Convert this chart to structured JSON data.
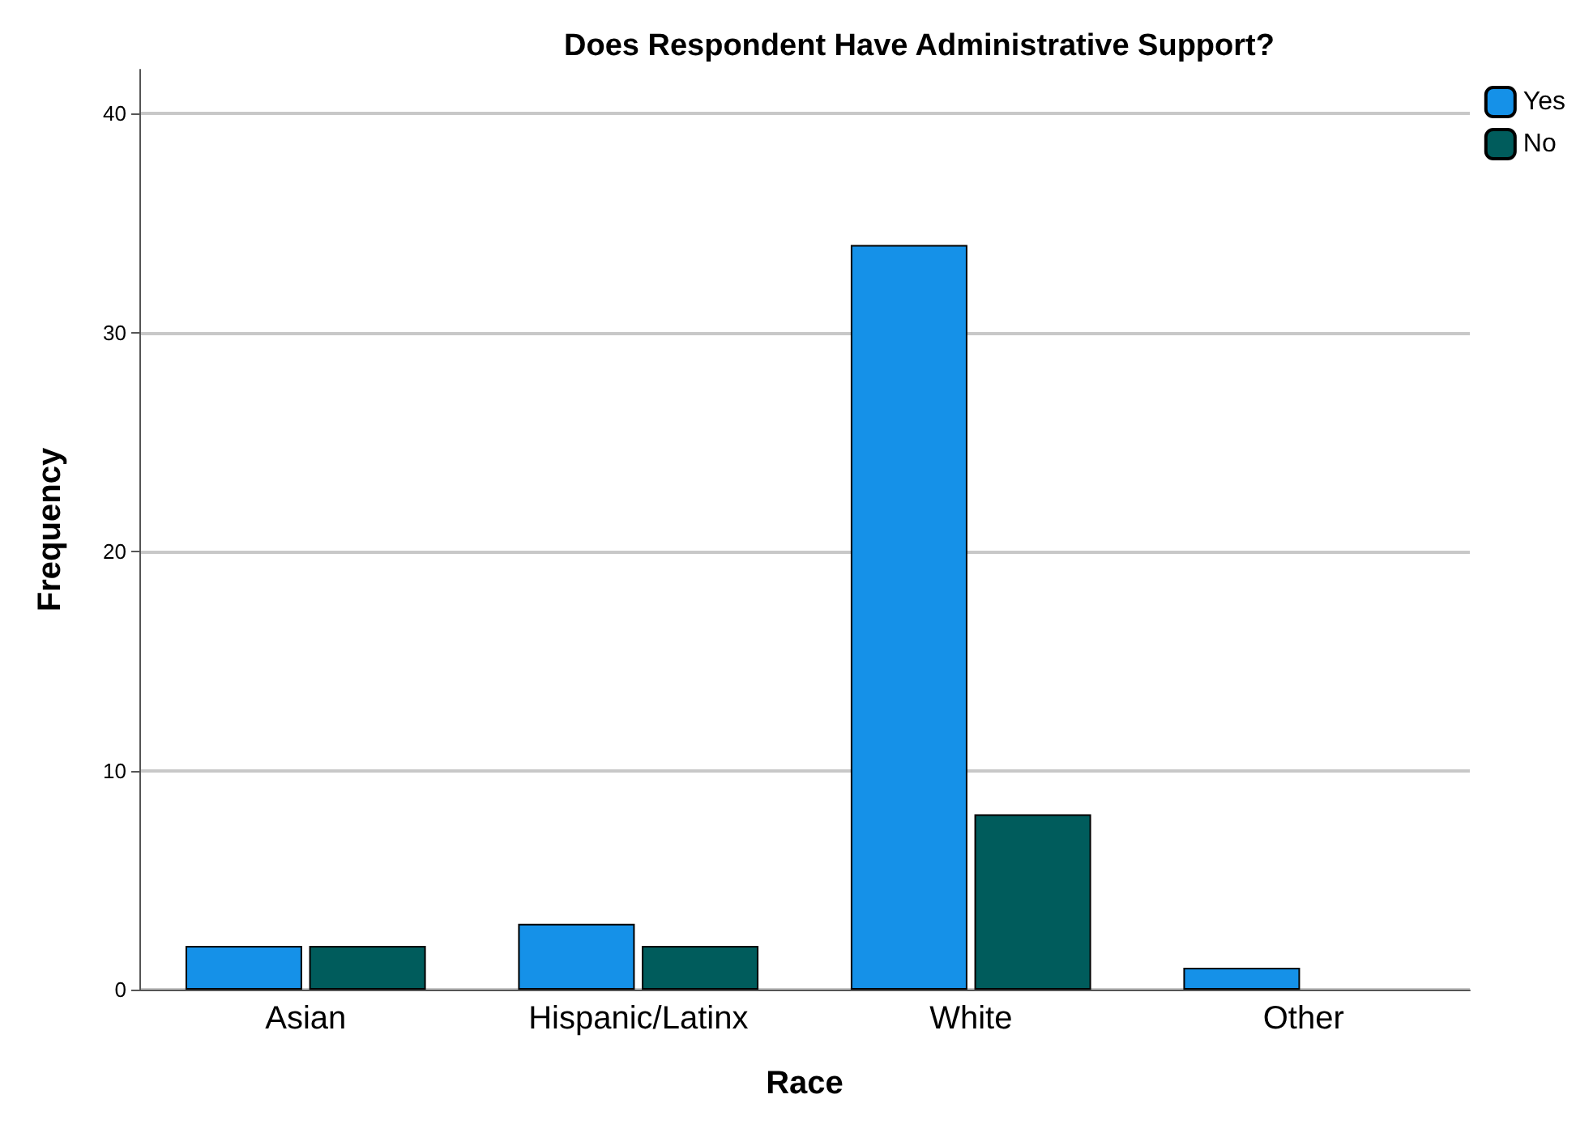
{
  "chart_data": {
    "type": "bar",
    "title": "Does Respondent Have Administrative Support?",
    "xlabel": "Race",
    "ylabel": "Frequency",
    "categories": [
      "Asian",
      "Hispanic/Latinx",
      "White",
      "Other"
    ],
    "series": [
      {
        "name": "Yes",
        "color": "#1591e8",
        "values": [
          2,
          3,
          34,
          1
        ]
      },
      {
        "name": "No",
        "color": "#005c5c",
        "values": [
          2,
          2,
          8,
          null
        ]
      }
    ],
    "ylim": [
      0,
      42
    ],
    "yticks": [
      0,
      10,
      20,
      30,
      40
    ],
    "grid": "y",
    "legend": "top right"
  }
}
